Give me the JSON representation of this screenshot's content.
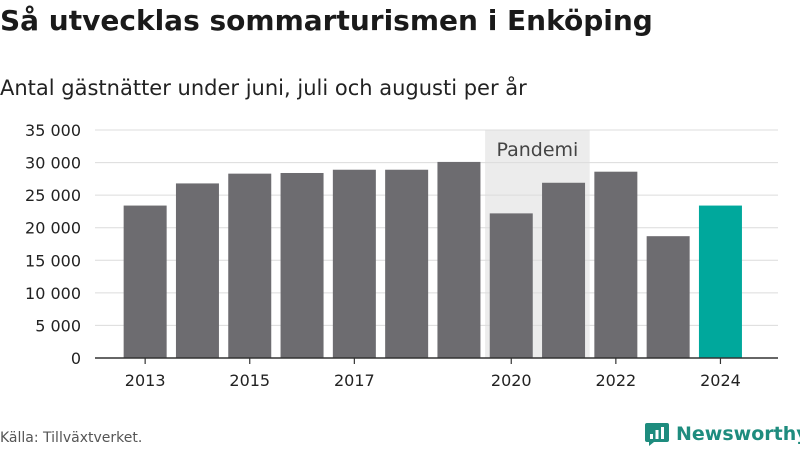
{
  "title": "Så utvecklas sommarturismen i Enköping",
  "subtitle": "Antal gästnätter under juni, juli och augusti per år",
  "source": "Källa: Tillväxtverket.",
  "brand": {
    "name": "Newsworthy",
    "icon": "newsworthy-logo-icon",
    "color": "#1e8c7e"
  },
  "chart_data": {
    "type": "bar",
    "categories": [
      "2013",
      "2014",
      "2015",
      "2016",
      "2017",
      "2018",
      "2019",
      "2020",
      "2021",
      "2022",
      "2023",
      "2024"
    ],
    "values": [
      23400,
      26800,
      28300,
      28400,
      28900,
      28900,
      30100,
      22200,
      26900,
      28600,
      18700,
      23400
    ],
    "xtick_labels": [
      "2013",
      "2015",
      "2017",
      "2020",
      "2022",
      "2024"
    ],
    "yticks": [
      0,
      5000,
      10000,
      15000,
      20000,
      25000,
      30000,
      35000
    ],
    "ytick_labels": [
      "0",
      "5 000",
      "10 000",
      "15 000",
      "20 000",
      "25 000",
      "30 000",
      "35 000"
    ],
    "ylim": [
      0,
      35000
    ],
    "grid": true,
    "highlight": {
      "category": "2024",
      "color": "#00a89c"
    },
    "bar_color": "#6d6c70",
    "annotation": {
      "label": "Pandemi",
      "categories": [
        "2020",
        "2021"
      ],
      "color": "#ececec"
    }
  }
}
